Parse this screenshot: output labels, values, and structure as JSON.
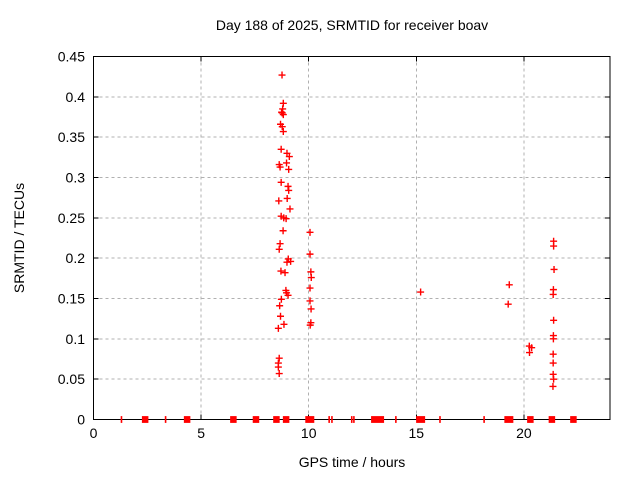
{
  "chart_data": {
    "type": "scatter",
    "title": "Day 188 of 2025, SRMTID for receiver boav",
    "xlabel": "GPS time / hours",
    "ylabel": "SRMTID / TECUs",
    "xlim": [
      0,
      24
    ],
    "ylim": [
      0,
      0.45
    ],
    "xticks": [
      0,
      5,
      10,
      15,
      20
    ],
    "xtick_labels": [
      "0",
      "5",
      "10",
      "15",
      "20"
    ],
    "yticks": [
      0,
      0.05,
      0.1,
      0.15,
      0.2,
      0.25,
      0.3,
      0.35,
      0.4,
      0.45
    ],
    "ytick_labels": [
      "0",
      "0.05",
      "0.1",
      "0.15",
      "0.2",
      "0.25",
      "0.3",
      "0.35",
      "0.4",
      "0.45"
    ],
    "grid": true,
    "legend_position": "none",
    "marker": "plus",
    "colors": {
      "points": "#ff0000",
      "grid": "#b0b0b0",
      "border": "#000000",
      "background": "#ffffff",
      "text": "#000000"
    },
    "points": [
      [
        8.76,
        0.427
      ],
      [
        8.82,
        0.392
      ],
      [
        8.79,
        0.385
      ],
      [
        8.74,
        0.381
      ],
      [
        8.77,
        0.38
      ],
      [
        8.82,
        0.378
      ],
      [
        8.69,
        0.366
      ],
      [
        8.77,
        0.363
      ],
      [
        8.82,
        0.357
      ],
      [
        8.72,
        0.335
      ],
      [
        8.99,
        0.33
      ],
      [
        9.1,
        0.326
      ],
      [
        8.97,
        0.318
      ],
      [
        8.63,
        0.316
      ],
      [
        8.67,
        0.313
      ],
      [
        9.07,
        0.31
      ],
      [
        8.72,
        0.294
      ],
      [
        9.04,
        0.289
      ],
      [
        9.07,
        0.284
      ],
      [
        9.0,
        0.274
      ],
      [
        8.61,
        0.271
      ],
      [
        9.13,
        0.261
      ],
      [
        8.72,
        0.252
      ],
      [
        8.84,
        0.25
      ],
      [
        8.95,
        0.249
      ],
      [
        8.81,
        0.234
      ],
      [
        8.67,
        0.218
      ],
      [
        8.63,
        0.211
      ],
      [
        9.05,
        0.199
      ],
      [
        9.16,
        0.196
      ],
      [
        8.99,
        0.195
      ],
      [
        8.71,
        0.184
      ],
      [
        8.9,
        0.182
      ],
      [
        8.94,
        0.16
      ],
      [
        8.97,
        0.157
      ],
      [
        9.04,
        0.154
      ],
      [
        8.73,
        0.149
      ],
      [
        8.65,
        0.141
      ],
      [
        8.69,
        0.128
      ],
      [
        8.85,
        0.118
      ],
      [
        8.59,
        0.113
      ],
      [
        8.63,
        0.076
      ],
      [
        8.59,
        0.07
      ],
      [
        8.59,
        0.065
      ],
      [
        8.63,
        0.057
      ],
      [
        10.06,
        0.232
      ],
      [
        10.06,
        0.205
      ],
      [
        10.1,
        0.183
      ],
      [
        10.12,
        0.176
      ],
      [
        10.06,
        0.163
      ],
      [
        10.06,
        0.147
      ],
      [
        10.11,
        0.137
      ],
      [
        10.1,
        0.12
      ],
      [
        10.07,
        0.117
      ],
      [
        15.2,
        0.158
      ],
      [
        19.32,
        0.167
      ],
      [
        19.27,
        0.143
      ],
      [
        20.25,
        0.091
      ],
      [
        20.36,
        0.089
      ],
      [
        20.26,
        0.083
      ],
      [
        21.38,
        0.221
      ],
      [
        21.38,
        0.215
      ],
      [
        21.4,
        0.186
      ],
      [
        21.37,
        0.161
      ],
      [
        21.36,
        0.155
      ],
      [
        21.38,
        0.123
      ],
      [
        21.37,
        0.104
      ],
      [
        21.37,
        0.1
      ],
      [
        21.36,
        0.081
      ],
      [
        21.36,
        0.07
      ],
      [
        21.36,
        0.056
      ],
      [
        21.38,
        0.05
      ],
      [
        21.35,
        0.041
      ]
    ],
    "zero_line_markers": [
      [
        1.3,
        1
      ],
      [
        2.4,
        2
      ],
      [
        3.35,
        1
      ],
      [
        4.35,
        2
      ],
      [
        6.5,
        2
      ],
      [
        7.55,
        2
      ],
      [
        8.5,
        2
      ],
      [
        8.95,
        2
      ],
      [
        10.05,
        3
      ],
      [
        10.95,
        1
      ],
      [
        11.08,
        1
      ],
      [
        12.0,
        1
      ],
      [
        12.1,
        1
      ],
      [
        13.2,
        4
      ],
      [
        14.05,
        1
      ],
      [
        15.2,
        3
      ],
      [
        16.1,
        1
      ],
      [
        18.15,
        1
      ],
      [
        19.3,
        3
      ],
      [
        20.3,
        2
      ],
      [
        21.3,
        2
      ],
      [
        22.3,
        2
      ]
    ]
  }
}
